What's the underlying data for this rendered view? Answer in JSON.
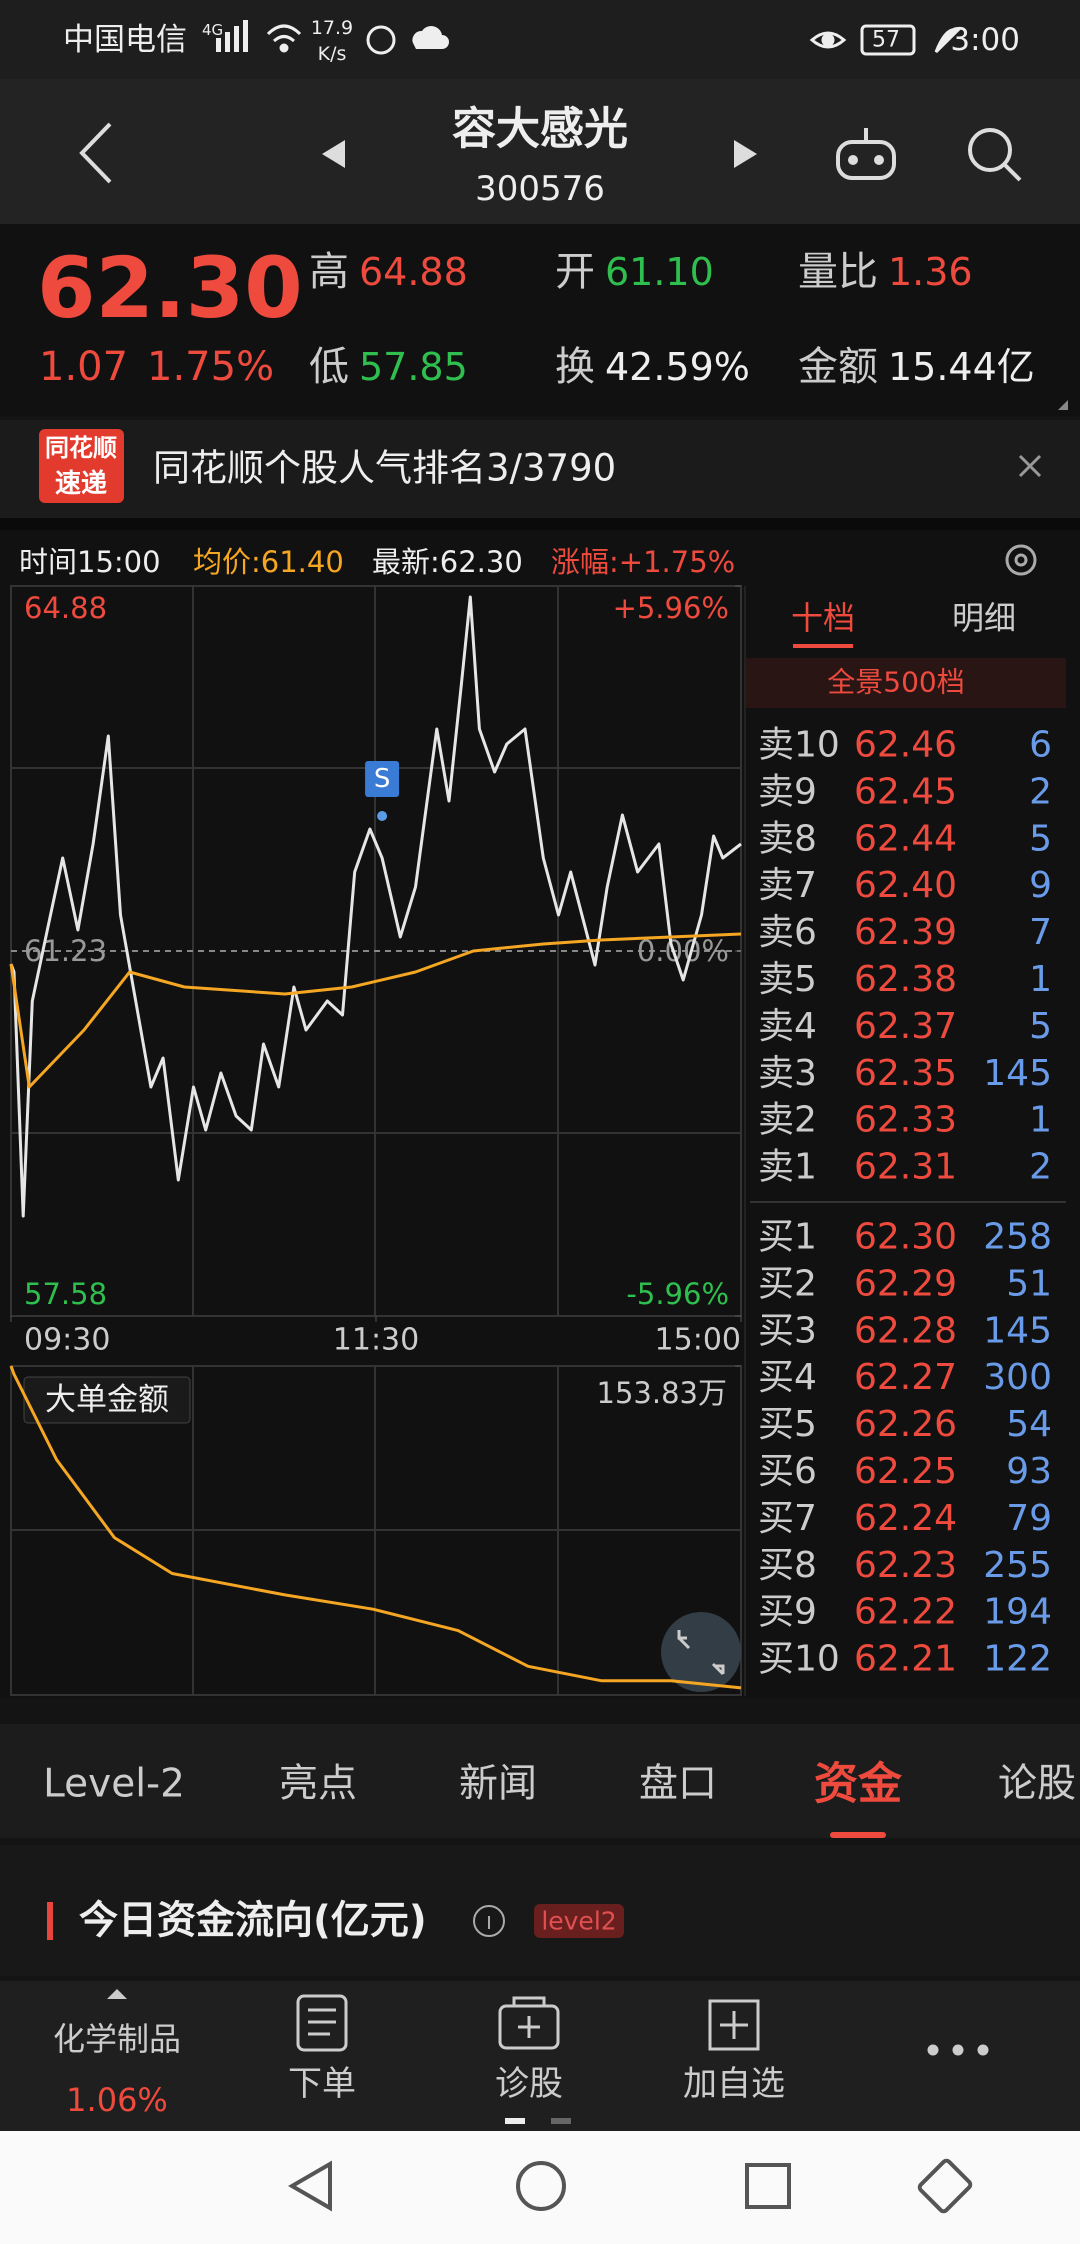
{
  "status_bar": {
    "carrier": "中国电信",
    "network": "4G",
    "speed": "17.9",
    "speed_unit": "K/s",
    "battery": "57",
    "time": "3:00"
  },
  "header": {
    "title": "容大感光",
    "code": "300576"
  },
  "quote": {
    "price": "62.30",
    "change": "1.07",
    "change_pct": "1.75%",
    "stats": [
      {
        "label": "高",
        "value": "64.88"
      },
      {
        "label": "开",
        "value": "61.10"
      },
      {
        "label": "量比",
        "value": "1.36"
      },
      {
        "label": "低",
        "value": "57.85"
      },
      {
        "label": "换",
        "value": "42.59%"
      },
      {
        "label": "金额",
        "value": "15.44亿"
      }
    ]
  },
  "banner": {
    "logo_top": "同花顺",
    "logo_bottom": "速递",
    "text": "同花顺个股人气排名3/3790"
  },
  "chart_info": {
    "time": "时间15:00",
    "avg": "均价:61.40",
    "latest": "最新:62.30",
    "change": "涨幅:+1.75%"
  },
  "chart_data": [
    {
      "type": "line",
      "xlim": [
        0,
        240
      ],
      "xticks": [
        {
          "value": 0,
          "label": "09:30"
        },
        {
          "value": 120,
          "label": "11:30"
        },
        {
          "value": 240,
          "label": "15:00"
        }
      ],
      "ylim": [
        57.58,
        64.88
      ],
      "yticks": [
        64.88,
        61.23,
        57.58
      ],
      "y2lim": [
        -5.96,
        5.96
      ],
      "y2ticks": [
        {
          "value": 5.96,
          "label": "+5.96%"
        },
        {
          "value": 0,
          "label": "0.00%"
        },
        {
          "value": -5.96,
          "label": "-5.96%"
        }
      ],
      "annotations": [
        {
          "text": "S",
          "x": 122,
          "y": 62.58
        }
      ],
      "series": [
        {
          "color": "#e6e6e6",
          "x": [
            0,
            1,
            4,
            7,
            13,
            17,
            22,
            27,
            32,
            36,
            41,
            46,
            50,
            55,
            60,
            64,
            69,
            74,
            79,
            83,
            88,
            93,
            97,
            104,
            109,
            113,
            118,
            122,
            128,
            133,
            140,
            144,
            148,
            151,
            154,
            159,
            163,
            169,
            175,
            180,
            184,
            192,
            196,
            201,
            206,
            213,
            217,
            221,
            227,
            231,
            234,
            240
          ],
          "values": [
            61.1,
            61.02,
            58.58,
            60.73,
            61.59,
            62.16,
            61.44,
            62.3,
            63.38,
            61.59,
            60.73,
            59.87,
            60.16,
            58.94,
            59.87,
            59.44,
            60.01,
            59.58,
            59.44,
            60.3,
            59.87,
            60.87,
            60.44,
            60.73,
            60.59,
            62.02,
            62.45,
            62.16,
            61.37,
            61.87,
            63.45,
            62.73,
            63.88,
            64.77,
            63.45,
            63.02,
            63.3,
            63.45,
            62.16,
            61.59,
            62.02,
            61.09,
            61.87,
            62.59,
            62.02,
            62.3,
            61.3,
            60.94,
            61.59,
            62.38,
            62.16,
            62.3
          ]
        },
        {
          "color": "#f5a623",
          "x": [
            0,
            6,
            24,
            39,
            57,
            90,
            112,
            133,
            152,
            175,
            194,
            217,
            240
          ],
          "values": [
            61.1,
            59.87,
            60.44,
            61.02,
            60.87,
            60.8,
            60.87,
            61.02,
            61.23,
            61.3,
            61.34,
            61.37,
            61.4
          ]
        }
      ]
    },
    {
      "type": "line",
      "title": "大单金额",
      "xlim": [
        0,
        240
      ],
      "ylim": [
        0,
        153.83
      ],
      "yticks": [
        {
          "value": 153.83,
          "label": "153.83万"
        }
      ],
      "series": [
        {
          "color": "#f5a623",
          "x": [
            0,
            1,
            15,
            34,
            53,
            90,
            119,
            147,
            170,
            194,
            217,
            240
          ],
          "values": [
            153.83,
            150,
            110,
            73.6,
            56.8,
            46.8,
            40.1,
            30.1,
            13.4,
            6.7,
            6.7,
            3.3
          ]
        }
      ]
    }
  ],
  "order_book": {
    "tabs": [
      "十档",
      "明细"
    ],
    "depth": "全景500档",
    "asks": [
      {
        "label": "卖10",
        "price": "62.46",
        "volume": "6"
      },
      {
        "label": "卖9",
        "price": "62.45",
        "volume": "2"
      },
      {
        "label": "卖8",
        "price": "62.44",
        "volume": "5"
      },
      {
        "label": "卖7",
        "price": "62.40",
        "volume": "9"
      },
      {
        "label": "卖6",
        "price": "62.39",
        "volume": "7"
      },
      {
        "label": "卖5",
        "price": "62.38",
        "volume": "1"
      },
      {
        "label": "卖4",
        "price": "62.37",
        "volume": "5"
      },
      {
        "label": "卖3",
        "price": "62.35",
        "volume": "145"
      },
      {
        "label": "卖2",
        "price": "62.33",
        "volume": "1"
      },
      {
        "label": "卖1",
        "price": "62.31",
        "volume": "2"
      }
    ],
    "bids": [
      {
        "label": "买1",
        "price": "62.30",
        "volume": "258"
      },
      {
        "label": "买2",
        "price": "62.29",
        "volume": "51"
      },
      {
        "label": "买3",
        "price": "62.28",
        "volume": "145"
      },
      {
        "label": "买4",
        "price": "62.27",
        "volume": "300"
      },
      {
        "label": "买5",
        "price": "62.26",
        "volume": "54"
      },
      {
        "label": "买6",
        "price": "62.25",
        "volume": "93"
      },
      {
        "label": "买7",
        "price": "62.24",
        "volume": "79"
      },
      {
        "label": "买8",
        "price": "62.23",
        "volume": "255"
      },
      {
        "label": "买9",
        "price": "62.22",
        "volume": "194"
      },
      {
        "label": "买10",
        "price": "62.21",
        "volume": "122"
      }
    ]
  },
  "tabs": [
    "Level-2",
    "亮点",
    "新闻",
    "盘口",
    "资金",
    "论股"
  ],
  "section": {
    "title": "今日资金流向(亿元)",
    "badge": "level2"
  },
  "toolbar": {
    "sector": "化学制品",
    "sector_change": "1.06%",
    "actions": [
      "下单",
      "诊股",
      "加自选"
    ]
  }
}
